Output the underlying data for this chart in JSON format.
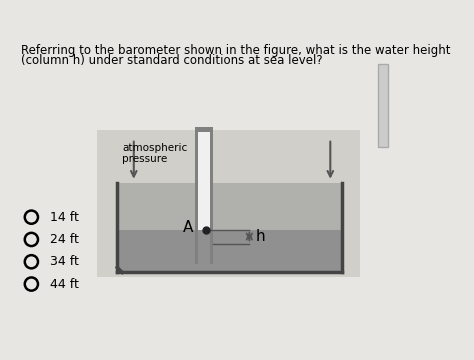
{
  "bg_color": "#e8e6e3",
  "question_text_line1": "Referring to the barometer shown in the figure, what is the water height",
  "question_text_line2": "(column h) under standard conditions at sea level?",
  "question_fontsize": 8.5,
  "diagram_bg": "#d0cfc9",
  "choices": [
    "14 ft",
    "24 ft",
    "34 ft",
    "44 ft"
  ],
  "choices_fontsize": 9,
  "atm_label": "atmospheric\npressure",
  "h_label": "h",
  "A_label": "A",
  "trough_fill": "#b0b0ac",
  "trough_water": "#909090",
  "trough_edge": "#444444",
  "tube_outer": "#808080",
  "tube_inner": "#f0f0f0",
  "water_in_tube": "#909090",
  "arrow_color": "#555555",
  "dot_color": "#222222"
}
